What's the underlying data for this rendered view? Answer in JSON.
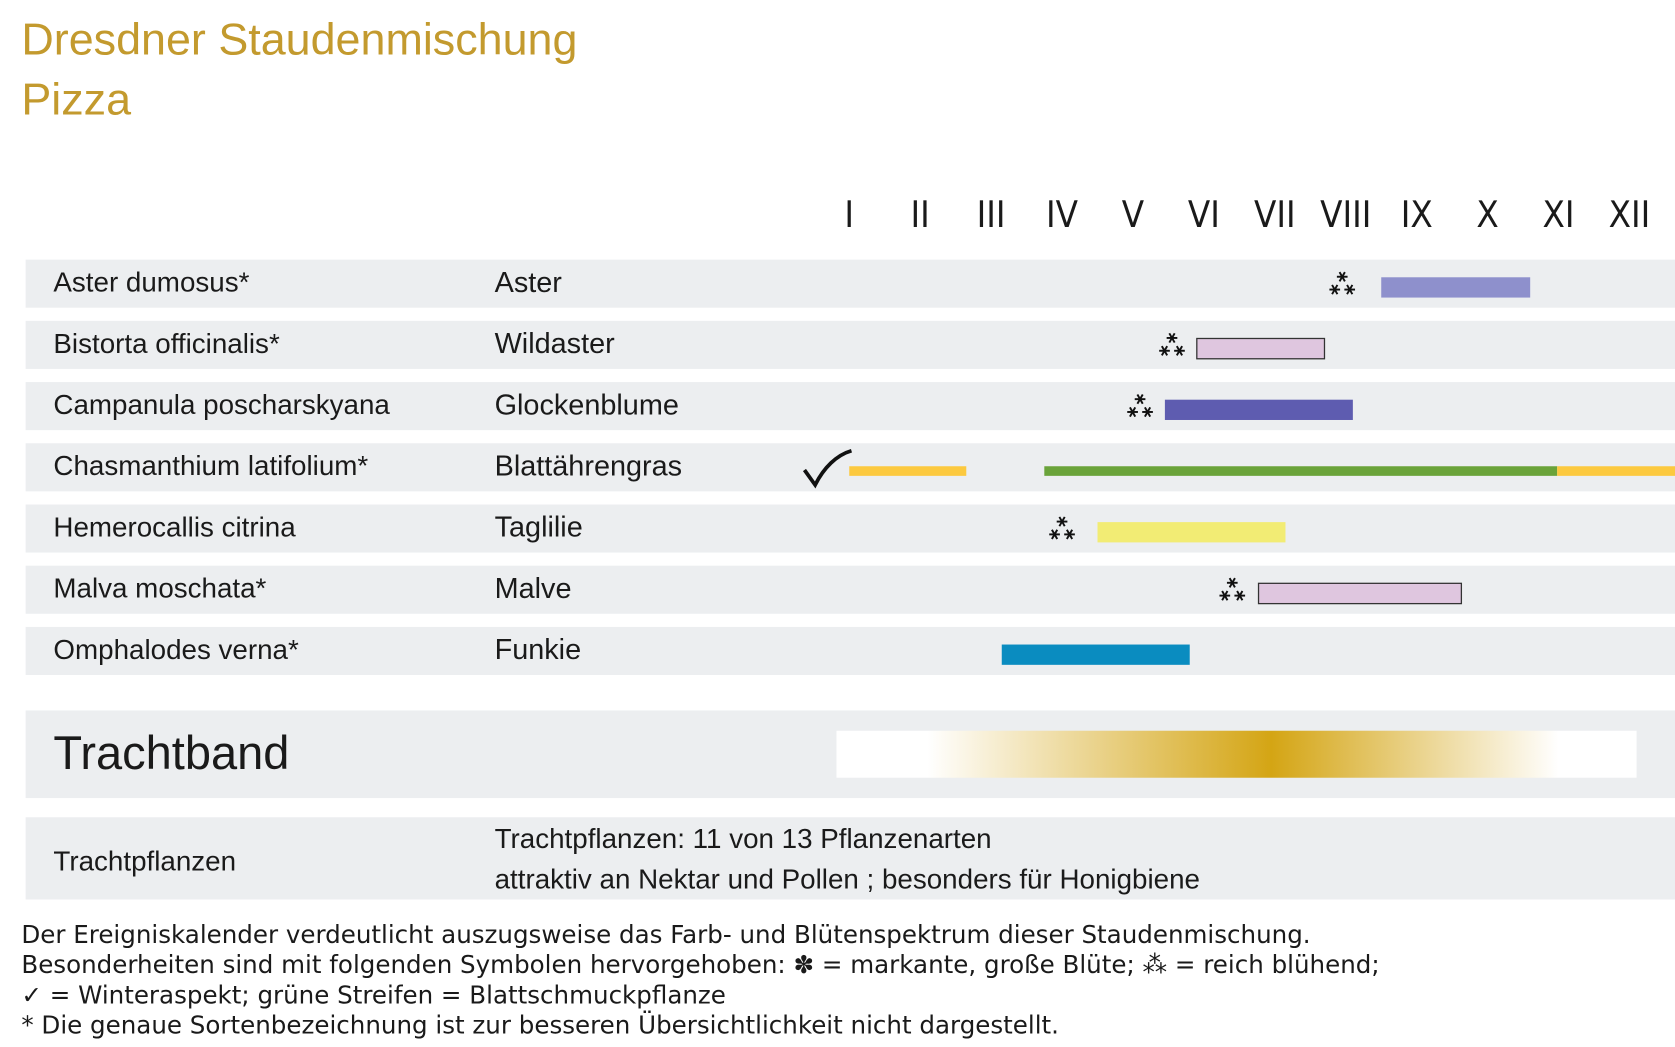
{
  "header": {
    "title": "Dresdner Staudenmischung",
    "subtitle": "Pizza"
  },
  "months": [
    "I",
    "II",
    "III",
    "IV",
    "V",
    "VI",
    "VII",
    "VIII",
    "IX",
    "X",
    "XI",
    "XII"
  ],
  "rows": [
    {
      "latin": "Aster dumosus*",
      "german": "Aster",
      "star": 7.95,
      "bars": [
        {
          "start": 8.5,
          "end": 10.6,
          "color": "#8e90cc",
          "outline": false
        }
      ]
    },
    {
      "latin": "Bistorta officinalis*",
      "german": "Wildaster",
      "star": 5.55,
      "bars": [
        {
          "start": 5.9,
          "end": 7.7,
          "color": "#dfc6df",
          "outline": true
        }
      ]
    },
    {
      "latin": "Campanula poscharskyana",
      "german": "Glockenblume",
      "star": 5.1,
      "bars": [
        {
          "start": 5.45,
          "end": 8.1,
          "color": "#5e5cb0",
          "outline": false
        }
      ]
    },
    {
      "latin": "Chasmanthium latifolium*",
      "german": "Blattährengras",
      "winter": 0.7,
      "bars": [
        {
          "start": 1.0,
          "end": 2.65,
          "color": "#fcc93f",
          "outline": false,
          "thin": true
        },
        {
          "start": 3.75,
          "end": 10.98,
          "color": "#6aa33a",
          "outline": false,
          "thin": true
        },
        {
          "start": 10.98,
          "end": 12.65,
          "color": "#fcc93f",
          "outline": false,
          "thin": true
        }
      ]
    },
    {
      "latin": "Hemerocallis citrina",
      "german": "Taglilie",
      "star": 4.0,
      "bars": [
        {
          "start": 4.5,
          "end": 7.15,
          "color": "#f2ec74",
          "outline": false
        }
      ]
    },
    {
      "latin": "Malva moschata*",
      "german": "Malve",
      "star": 6.4,
      "bars": [
        {
          "start": 6.77,
          "end": 9.63,
          "color": "#dfc6df",
          "outline": true
        }
      ]
    },
    {
      "latin": "Omphalodes verna*",
      "german": "Funkie",
      "bars": [
        {
          "start": 3.15,
          "end": 5.8,
          "color": "#0a8cc0",
          "outline": false
        }
      ]
    }
  ],
  "trachtband": {
    "label": "Trachtband",
    "start": 0.82,
    "end": 12.1,
    "fade": [
      2.1,
      11.0
    ],
    "peak": 6.95,
    "color": "#d4a514"
  },
  "trachtpflanzen": {
    "label": "Trachtpflanzen",
    "lines": [
      "Trachtpflanzen: 11 von 13 Pflanzenarten",
      "attraktiv an Nektar und Pollen ; besonders für Honigbiene"
    ]
  },
  "footer": [
    "Der Ereigniskalender verdeutlicht auszugsweise das Farb- und Blütenspektrum dieser Staudenmischung.",
    "Besonderheiten sind mit folgenden Symbolen hervorgehoben: ✽ = markante, große Blüte; ⁂ = reich blühend;",
    "✓ = Winteraspekt; grüne Streifen = Blattschmuckpflanze",
    "* Die genaue Sortenbezeichnung ist zur besseren Übersichtlichkeit nicht dargestellt."
  ]
}
